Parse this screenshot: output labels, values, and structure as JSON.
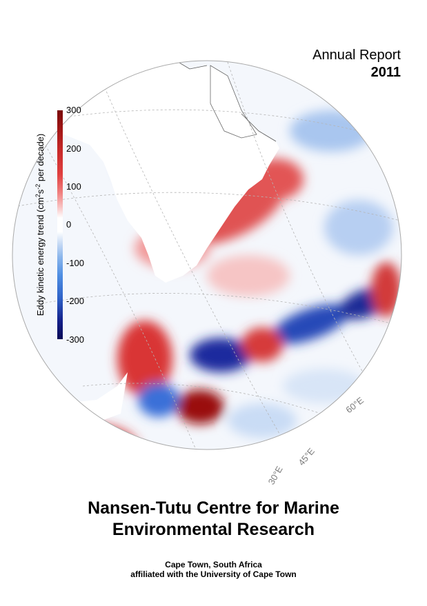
{
  "report": {
    "line1": "Annual Report",
    "year": "2011"
  },
  "colorbar": {
    "label_prefix": "Eddy kinetic energy trend (cm",
    "label_exp1": "2",
    "label_mid": "s",
    "label_exp2": "-2",
    "label_suffix": " per decade)",
    "ticks": [
      "300",
      "200",
      "100",
      "0",
      "-100",
      "-200",
      "-300"
    ],
    "colors": {
      "max": "#7a0a0a",
      "zero": "#ffffff",
      "min": "#0a0a55"
    }
  },
  "map": {
    "longitude_labels": [
      "60°E",
      "45°E",
      "30°E"
    ],
    "land_color": "#ffffff",
    "grid_color": "#b5b5b5"
  },
  "organization": {
    "line1": "Nansen-Tutu Centre for Marine",
    "line2": "Environmental Research"
  },
  "location": {
    "line1": "Cape Town, South Africa",
    "line2": "affiliated with the University of Cape Town"
  }
}
